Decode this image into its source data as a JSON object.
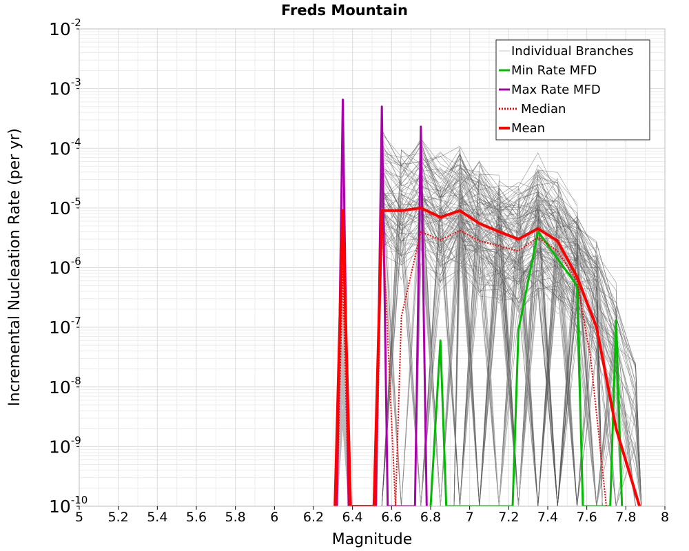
{
  "chart_data": {
    "type": "line",
    "title": "Freds Mountain",
    "xlabel": "Magnitude",
    "ylabel": "Incremental Nucleation Rate (per yr)",
    "xlim": [
      5,
      8
    ],
    "ylim": [
      1e-10,
      0.01
    ],
    "yscale": "log",
    "grid": true,
    "legend_position": "top-right",
    "x_ticks": [
      "5",
      "5.2",
      "5.4",
      "5.6",
      "5.8",
      "6",
      "6.2",
      "6.4",
      "6.6",
      "6.8",
      "7",
      "7.2",
      "7.4",
      "7.6",
      "7.8",
      "8"
    ],
    "y_ticks": [
      {
        "base": "10",
        "exp": "-10"
      },
      {
        "base": "10",
        "exp": "-9"
      },
      {
        "base": "10",
        "exp": "-8"
      },
      {
        "base": "10",
        "exp": "-7"
      },
      {
        "base": "10",
        "exp": "-6"
      },
      {
        "base": "10",
        "exp": "-5"
      },
      {
        "base": "10",
        "exp": "-4"
      },
      {
        "base": "10",
        "exp": "-3"
      },
      {
        "base": "10",
        "exp": "-2"
      }
    ],
    "series": [
      {
        "name": "Min Rate MFD",
        "color": "#00bb00",
        "style": "solid",
        "points": [
          [
            6.8,
            1e-10
          ],
          [
            6.85,
            6e-08
          ],
          [
            6.88,
            1e-10
          ],
          [
            7.22,
            1e-10
          ],
          [
            7.25,
            9e-08
          ],
          [
            7.35,
            4e-06
          ],
          [
            7.55,
            5e-07
          ],
          [
            7.58,
            1e-10
          ],
          [
            7.72,
            1e-10
          ],
          [
            7.75,
            1.3e-07
          ],
          [
            7.78,
            1e-10
          ]
        ]
      },
      {
        "name": "Max Rate MFD",
        "color": "#aa00aa",
        "style": "solid",
        "points": [
          [
            6.32,
            1e-10
          ],
          [
            6.35,
            0.00065
          ],
          [
            6.38,
            1e-10
          ],
          [
            6.52,
            1e-10
          ],
          [
            6.55,
            0.0005
          ],
          [
            6.58,
            1e-10
          ],
          [
            6.72,
            1e-10
          ],
          [
            6.75,
            0.00023
          ],
          [
            6.78,
            1e-10
          ]
        ]
      },
      {
        "name": "Median",
        "color": "#ff0000",
        "style": "dotted",
        "points": [
          [
            6.32,
            1e-10
          ],
          [
            6.35,
            1e-06
          ],
          [
            6.38,
            1e-10
          ],
          [
            6.52,
            1e-10
          ],
          [
            6.55,
            9e-06
          ],
          [
            6.62,
            1e-10
          ],
          [
            6.65,
            1.5e-07
          ],
          [
            6.75,
            4e-06
          ],
          [
            6.85,
            2.9e-06
          ],
          [
            6.95,
            4.2e-06
          ],
          [
            7.05,
            2.8e-06
          ],
          [
            7.15,
            2.3e-06
          ],
          [
            7.25,
            1.9e-06
          ],
          [
            7.35,
            3.2e-06
          ],
          [
            7.45,
            1.9e-06
          ],
          [
            7.55,
            6e-07
          ],
          [
            7.62,
            3e-08
          ],
          [
            7.7,
            1e-10
          ]
        ]
      },
      {
        "name": "Mean",
        "color": "#ff0000",
        "style": "solid",
        "points": [
          [
            6.31,
            1e-10
          ],
          [
            6.35,
            9e-06
          ],
          [
            6.39,
            1e-10
          ],
          [
            6.51,
            1e-10
          ],
          [
            6.55,
            9e-06
          ],
          [
            6.65,
            9e-06
          ],
          [
            6.75,
            1e-05
          ],
          [
            6.85,
            7e-06
          ],
          [
            6.95,
            9e-06
          ],
          [
            7.05,
            5.5e-06
          ],
          [
            7.15,
            4e-06
          ],
          [
            7.25,
            3e-06
          ],
          [
            7.35,
            4.5e-06
          ],
          [
            7.45,
            2.8e-06
          ],
          [
            7.55,
            7e-07
          ],
          [
            7.65,
            1e-07
          ],
          [
            7.75,
            2e-09
          ],
          [
            7.87,
            1e-10
          ]
        ]
      }
    ],
    "individual_branches": {
      "name": "Individual Branches",
      "color": "#555555",
      "light_color": "#b4b4b4"
    },
    "legend": [
      {
        "label": "Individual Branches",
        "color": "#c8c8c8",
        "style": "thin"
      },
      {
        "label": "Min Rate MFD",
        "color": "#00bb00",
        "style": "solid"
      },
      {
        "label": "Max Rate MFD",
        "color": "#aa00aa",
        "style": "solid"
      },
      {
        "label": "Median",
        "color": "#ff0000",
        "style": "dotted"
      },
      {
        "label": "Mean",
        "color": "#ff0000",
        "style": "thick"
      }
    ]
  }
}
